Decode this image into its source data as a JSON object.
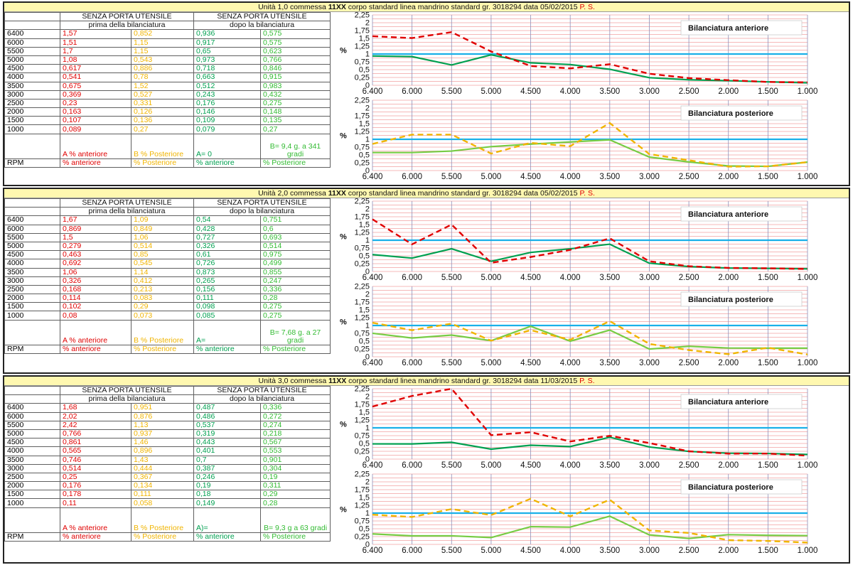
{
  "table_labels": {
    "header": "SENZA PORTA UTENSILE",
    "before": "prima della bilanciatura",
    "after": "dopo la bilanciatura",
    "rpm": "RPM",
    "pct_ant": "% anteriore",
    "pct_post": "% Posteriore",
    "chart_title_ant": "Bilanciatura anteriore",
    "chart_title_post": "Bilanciatura posteriore",
    "y_unit": "%"
  },
  "colors": {
    "before_ant": "#e00000",
    "before_post": "#f0b400",
    "after_ant": "#00a050",
    "after_post": "#77cc44",
    "reference": "#1ab0e8"
  },
  "units": [
    {
      "title_pre": "Unità 1,0 commessa ",
      "title_bold": "11XX",
      "title_mid": " corpo standard linea mandrino standard gr. 3018294   data 05/02/2015 ",
      "title_red": "P. S.",
      "rpm": [
        "6400",
        "6000",
        "5500",
        "5000",
        "4500",
        "4000",
        "3500",
        "3000",
        "2500",
        "2000",
        "1500",
        "1000"
      ],
      "a_before": [
        "1,57",
        "1,51",
        "1,7",
        "1,08",
        "0,617",
        "0,541",
        "0,675",
        "0,369",
        "0,23",
        "0,163",
        "0,107",
        "0,089"
      ],
      "b_before": [
        "0,852",
        "1,15",
        "1,15",
        "0,543",
        "0,886",
        "0,78",
        "1,52",
        "0,527",
        "0,331",
        "0,126",
        "0,136",
        "0,27"
      ],
      "a_after": [
        "0,936",
        "0,917",
        "0,65",
        "0,973",
        "0,718",
        "0,663",
        "0,512",
        "0,243",
        "0,176",
        "0,146",
        "0,109",
        "0,079"
      ],
      "b_after": [
        "0,575",
        "0,575",
        "0,623",
        "0,766",
        "0,846",
        "0,915",
        "0,983",
        "0,432",
        "0,275",
        "0,148",
        "0,135",
        "0,27"
      ],
      "note_a": "A   % anteriore",
      "note_b": "B % Posteriore",
      "note_a_after": "A= 0",
      "note_b_after": "B= 9,4 g. a 341 gradi"
    },
    {
      "title_pre": "Unità 2,0 commessa ",
      "title_bold": "11XX",
      "title_mid": " corpo standard linea mandrino standard gr. 3018294   data 05/02/2015 ",
      "title_red": "P. S.",
      "rpm": [
        "6400",
        "6000",
        "5500",
        "5000",
        "4500",
        "4000",
        "3500",
        "3000",
        "2500",
        "2000",
        "1500",
        "1000"
      ],
      "a_before": [
        "1,67",
        "0,869",
        "1,5",
        "0,279",
        "0,463",
        "0,692",
        "1,06",
        "0,326",
        "0,168",
        "0,114",
        "0,102",
        "0,08"
      ],
      "b_before": [
        "1,09",
        "0,849",
        "1,06",
        "0,514",
        "0,85",
        "0,545",
        "1,14",
        "0,412",
        "0,213",
        "0,083",
        "0,29",
        "0,073"
      ],
      "a_after": [
        "0,54",
        "0,428",
        "0,727",
        "0,326",
        "0,61",
        "0,726",
        "0,873",
        "0,265",
        "0,156",
        "0,111",
        "0,098",
        "0,085"
      ],
      "b_after": [
        "0,751",
        "0,6",
        "0,693",
        "0,514",
        "0,975",
        "0,499",
        "0,855",
        "0,247",
        "0,336",
        "0,28",
        "0,275",
        "0,275"
      ],
      "note_a": "A % anteriore",
      "note_b": "B % Posteriore",
      "note_a_after": "A=",
      "note_b_after": "B= 7,68 g. a 27 gradi"
    },
    {
      "title_pre": "Unità 3,0 commessa ",
      "title_bold": "11XX",
      "title_mid": " corpo standard linea mandrino standard gr. 3018294   data 11/03/2015 ",
      "title_red": "P. S.",
      "rpm": [
        "6400",
        "6000",
        "5500",
        "5000",
        "4500",
        "4000",
        "3500",
        "3000",
        "2500",
        "2000",
        "1500",
        "1000"
      ],
      "a_before": [
        "1,68",
        "2,02",
        "2,42",
        "0,766",
        "0,861",
        "0,565",
        "0,746",
        "0,514",
        "0,25",
        "0,176",
        "0,178",
        "0,11"
      ],
      "b_before": [
        "0,951",
        "0,876",
        "1,13",
        "0,937",
        "1,46",
        "0,896",
        "1,43",
        "0,444",
        "0,367",
        "0,134",
        "0,111",
        "0,058"
      ],
      "a_after": [
        "0,487",
        "0,486",
        "0,537",
        "0,319",
        "0,443",
        "0,401",
        "0,7",
        "0,387",
        "0,246",
        "0,19",
        "0,18",
        "0,149"
      ],
      "b_after": [
        "0,336",
        "0,272",
        "0,274",
        "0,218",
        "0,567",
        "0,553",
        "0,901",
        "0,304",
        "0,19",
        "0,311",
        "0,29",
        "0,28"
      ],
      "note_a": "A % anteriore",
      "note_b": "B % Posteriore",
      "note_a_after": "A)=",
      "note_b_after": "B= 9,3 g a 63 gradi"
    }
  ],
  "chart_data": [
    {
      "type": "line",
      "unit": "1,0",
      "title": "Bilanciatura anteriore",
      "ylabel": "%",
      "ylim": [
        0,
        2.25
      ],
      "reference_line": 1,
      "x": [
        "6.400",
        "6.000",
        "5.500",
        "5.000",
        "4.500",
        "4.000",
        "3.500",
        "3.000",
        "2.500",
        "2.000",
        "1.500",
        "1.000"
      ],
      "series": [
        {
          "values": [
            1.57,
            1.51,
            1.7,
            1.08,
            0.617,
            0.541,
            0.675,
            0.369,
            0.23,
            0.163,
            0.107,
            0.089
          ]
        },
        {
          "values": [
            0.936,
            0.917,
            0.65,
            0.973,
            0.718,
            0.663,
            0.512,
            0.243,
            0.176,
            0.146,
            0.109,
            0.079
          ]
        }
      ]
    },
    {
      "type": "line",
      "unit": "1,0",
      "title": "Bilanciatura posteriore",
      "ylabel": "%",
      "ylim": [
        0,
        2.25
      ],
      "reference_line": 1,
      "x": [
        "6.400",
        "6.000",
        "5.500",
        "5.000",
        "4.500",
        "4.000",
        "3.500",
        "3.000",
        "2.500",
        "2.000",
        "1.500",
        "1.000"
      ],
      "series": [
        {
          "values": [
            0.852,
            1.15,
            1.15,
            0.543,
            0.886,
            0.78,
            1.52,
            0.527,
            0.331,
            0.126,
            0.136,
            0.27
          ]
        },
        {
          "values": [
            0.575,
            0.575,
            0.623,
            0.766,
            0.846,
            0.915,
            0.983,
            0.432,
            0.275,
            0.148,
            0.135,
            0.27
          ]
        }
      ]
    },
    {
      "type": "line",
      "unit": "2,0",
      "title": "Bilanciatura anteriore",
      "ylabel": "%",
      "ylim": [
        0,
        2.25
      ],
      "reference_line": 1,
      "x": [
        "6.400",
        "6.000",
        "5.500",
        "5.000",
        "4.500",
        "4.000",
        "3.500",
        "3.000",
        "2.500",
        "2.000",
        "1.500",
        "1.000"
      ],
      "series": [
        {
          "values": [
            1.67,
            0.869,
            1.5,
            0.279,
            0.463,
            0.692,
            1.06,
            0.326,
            0.168,
            0.114,
            0.102,
            0.08
          ]
        },
        {
          "values": [
            0.54,
            0.428,
            0.727,
            0.326,
            0.61,
            0.726,
            0.873,
            0.265,
            0.156,
            0.111,
            0.098,
            0.085
          ]
        }
      ]
    },
    {
      "type": "line",
      "unit": "2,0",
      "title": "Bilanciatura posteriore",
      "ylabel": "%",
      "ylim": [
        0,
        2.25
      ],
      "reference_line": 1,
      "x": [
        "6.400",
        "6.000",
        "5.500",
        "5.000",
        "4.500",
        "4.000",
        "3.500",
        "3.000",
        "2.500",
        "2.000",
        "1.500",
        "1.000"
      ],
      "series": [
        {
          "values": [
            1.09,
            0.849,
            1.06,
            0.514,
            0.85,
            0.545,
            1.14,
            0.412,
            0.213,
            0.083,
            0.29,
            0.073
          ]
        },
        {
          "values": [
            0.751,
            0.6,
            0.693,
            0.514,
            0.975,
            0.499,
            0.855,
            0.247,
            0.336,
            0.28,
            0.275,
            0.275
          ]
        }
      ]
    },
    {
      "type": "line",
      "unit": "3,0",
      "title": "Bilanciatura anteriore",
      "ylabel": "%",
      "ylim": [
        0,
        2.25
      ],
      "reference_line": 1,
      "x": [
        "6.400",
        "6.000",
        "5.500",
        "5.000",
        "4.500",
        "4.000",
        "3.500",
        "3.000",
        "2.500",
        "2.000",
        "1.500",
        "1.000"
      ],
      "series": [
        {
          "values": [
            1.68,
            2.02,
            2.42,
            0.766,
            0.861,
            0.565,
            0.746,
            0.514,
            0.25,
            0.176,
            0.178,
            0.11
          ]
        },
        {
          "values": [
            0.487,
            0.486,
            0.537,
            0.319,
            0.443,
            0.401,
            0.7,
            0.387,
            0.246,
            0.19,
            0.18,
            0.149
          ]
        }
      ]
    },
    {
      "type": "line",
      "unit": "3,0",
      "title": "Bilanciatura posteriore",
      "ylabel": "%",
      "ylim": [
        0,
        2.25
      ],
      "reference_line": 1,
      "x": [
        "6.400",
        "6.000",
        "5.500",
        "5.000",
        "4.500",
        "4.000",
        "3.500",
        "3.000",
        "2.500",
        "2.000",
        "1.500",
        "1.000"
      ],
      "series": [
        {
          "values": [
            0.951,
            0.876,
            1.13,
            0.937,
            1.46,
            0.896,
            1.43,
            0.444,
            0.367,
            0.134,
            0.111,
            0.058
          ]
        },
        {
          "values": [
            0.336,
            0.272,
            0.274,
            0.218,
            0.567,
            0.553,
            0.901,
            0.304,
            0.19,
            0.311,
            0.29,
            0.28
          ]
        }
      ]
    }
  ]
}
